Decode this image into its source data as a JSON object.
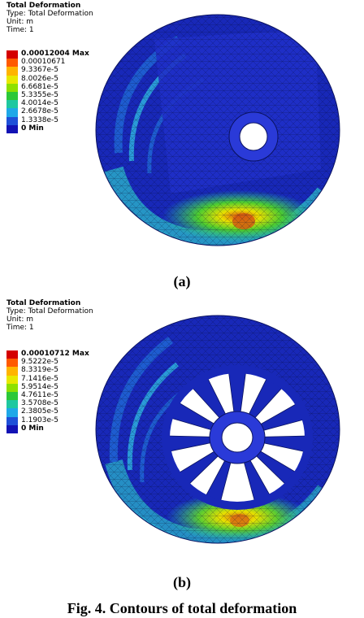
{
  "panels": [
    {
      "header": {
        "title": "Total Deformation",
        "type": "Type: Total Deformation",
        "unit": "Unit: m",
        "time": "Time: 1"
      },
      "legend": [
        {
          "label": "0.00012004 Max",
          "color": "#d40000"
        },
        {
          "label": "0.00010671",
          "color": "#ff5a00"
        },
        {
          "label": "9.3367e-5",
          "color": "#ffb400"
        },
        {
          "label": "8.0026e-5",
          "color": "#e8e800"
        },
        {
          "label": "6.6681e-5",
          "color": "#8ee000"
        },
        {
          "label": "5.3355e-5",
          "color": "#2cc838"
        },
        {
          "label": "4.0014e-5",
          "color": "#1ec8a0"
        },
        {
          "label": "2.6678e-5",
          "color": "#1ea8e8"
        },
        {
          "label": "1.3338e-5",
          "color": "#1e50d8"
        },
        {
          "label": "0 Min",
          "color": "#1212b4"
        }
      ],
      "label": "(a)"
    },
    {
      "header": {
        "title": "Total Deformation",
        "type": "Type: Total Deformation",
        "unit": "Unit: m",
        "time": "Time: 1"
      },
      "legend": [
        {
          "label": "0.00010712 Max",
          "color": "#d40000"
        },
        {
          "label": "9.5222e-5",
          "color": "#ff5a00"
        },
        {
          "label": "8.3319e-5",
          "color": "#ffb400"
        },
        {
          "label": "7.1416e-5",
          "color": "#e8e800"
        },
        {
          "label": "5.9514e-5",
          "color": "#8ee000"
        },
        {
          "label": "4.7611e-5",
          "color": "#2cc838"
        },
        {
          "label": "3.5708e-5",
          "color": "#1ec8a0"
        },
        {
          "label": "2.3805e-5",
          "color": "#1ea8e8"
        },
        {
          "label": "1.1903e-5",
          "color": "#1e50d8"
        },
        {
          "label": "0 Min",
          "color": "#1212b4"
        }
      ],
      "label": "(b)"
    }
  ],
  "caption": "Fig. 4. Contours of total deformation"
}
